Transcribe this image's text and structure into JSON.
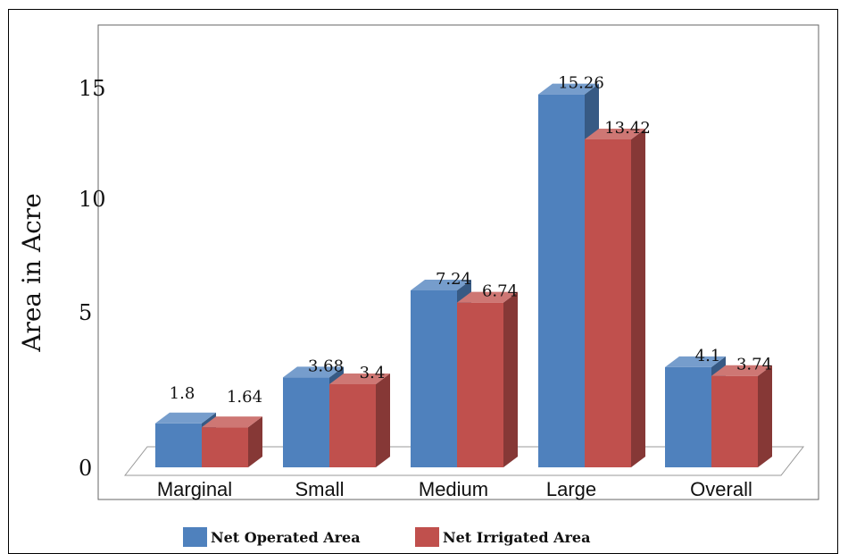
{
  "chart_data": {
    "type": "bar",
    "categories": [
      "Marginal",
      "Small",
      "Medium",
      "Large",
      "Overall"
    ],
    "series": [
      {
        "name": "Net Operated Area",
        "values": [
          1.8,
          3.68,
          7.24,
          15.26,
          4.1
        ],
        "labels": [
          "1.8",
          "3.68",
          "7.24",
          "15.26",
          "4.1"
        ],
        "color": "#4f81bd"
      },
      {
        "name": "Net Irrigated Area",
        "values": [
          1.64,
          3.4,
          6.74,
          13.42,
          3.74
        ],
        "labels": [
          "1.64",
          "3.4",
          "6.74",
          "13.42",
          "3.74"
        ],
        "color": "#c0504d"
      }
    ],
    "ylabel": "Area in Acre",
    "xlabel": "",
    "yticks": [
      "0",
      "5",
      "10",
      "15"
    ],
    "ylim": [
      0,
      16
    ],
    "style": "3d-clustered-bar",
    "legend_position": "bottom"
  }
}
